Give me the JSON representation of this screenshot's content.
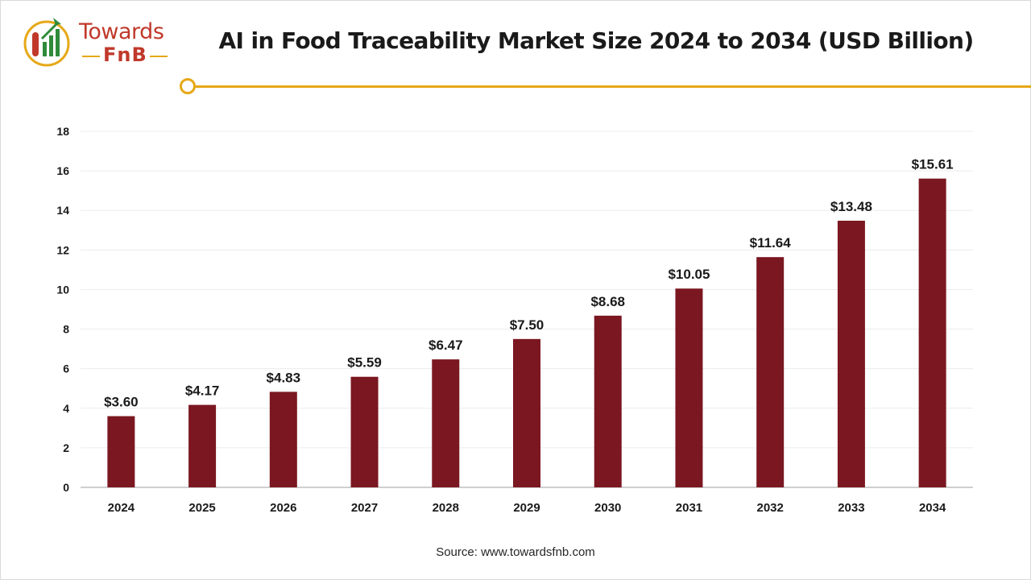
{
  "brand": {
    "name_line1": "Towards",
    "name_line2": "FnB",
    "colors": {
      "red": "#c0392b",
      "gold": "#e6a817",
      "green": "#2e8b3a"
    }
  },
  "title": "AI in Food Traceability Market Size 2024 to 2034 (USD Billion)",
  "source": "Source: www.towardsfnb.com",
  "chart_data": {
    "type": "bar",
    "categories": [
      "2024",
      "2025",
      "2026",
      "2027",
      "2028",
      "2029",
      "2030",
      "2031",
      "2032",
      "2033",
      "2034"
    ],
    "values": [
      3.6,
      4.17,
      4.83,
      5.59,
      6.47,
      7.5,
      8.68,
      10.05,
      11.64,
      13.48,
      15.61
    ],
    "value_labels": [
      "$3.60",
      "$4.17",
      "$4.83",
      "$5.59",
      "$6.47",
      "$7.50",
      "$8.68",
      "$10.05",
      "$11.64",
      "$13.48",
      "$15.61"
    ],
    "ylim": [
      0,
      18
    ],
    "yticks": [
      0,
      2,
      4,
      6,
      8,
      10,
      12,
      14,
      16,
      18
    ],
    "title": "AI in Food Traceability Market Size 2024 to 2034 (USD Billion)",
    "xlabel": "",
    "ylabel": "",
    "grid": true,
    "bar_color": "#7b1721"
  }
}
